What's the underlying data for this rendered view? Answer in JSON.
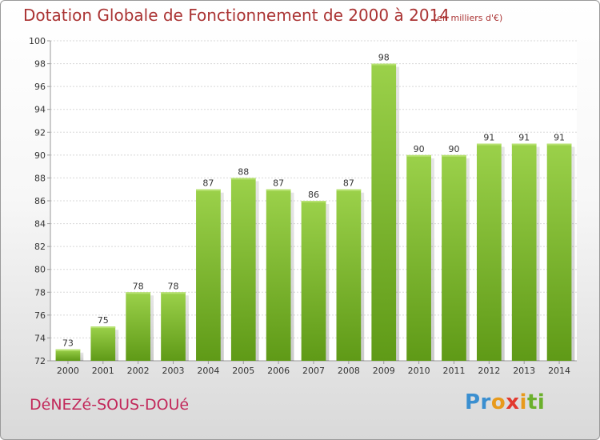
{
  "header": {
    "title": "Dotation Globale de Fonctionnement de 2000 à 2014",
    "subtitle": "(en milliers d'€)"
  },
  "footer": {
    "commune": "DéNEZé-SOUS-DOUé",
    "logo": [
      "Pr",
      "o",
      "x",
      "i",
      "ti"
    ]
  },
  "colors": {
    "bar": "#7cb82f",
    "title": "#aa3333",
    "commune": "#c2285a"
  },
  "chart_data": {
    "type": "bar",
    "title": "Dotation Globale de Fonctionnement de 2000 à 2014",
    "subtitle": "(en milliers d'€)",
    "xlabel": "",
    "ylabel": "",
    "categories": [
      "2000",
      "2001",
      "2002",
      "2003",
      "2004",
      "2005",
      "2006",
      "2007",
      "2008",
      "2009",
      "2010",
      "2011",
      "2012",
      "2013",
      "2014"
    ],
    "values": [
      73,
      75,
      78,
      78,
      87,
      88,
      87,
      86,
      87,
      98,
      90,
      90,
      91,
      91,
      91
    ],
    "ylim": [
      72,
      100
    ],
    "yticks": [
      72,
      74,
      76,
      78,
      80,
      82,
      84,
      86,
      88,
      90,
      92,
      94,
      96,
      98,
      100
    ],
    "grid": true,
    "legend": "none"
  }
}
